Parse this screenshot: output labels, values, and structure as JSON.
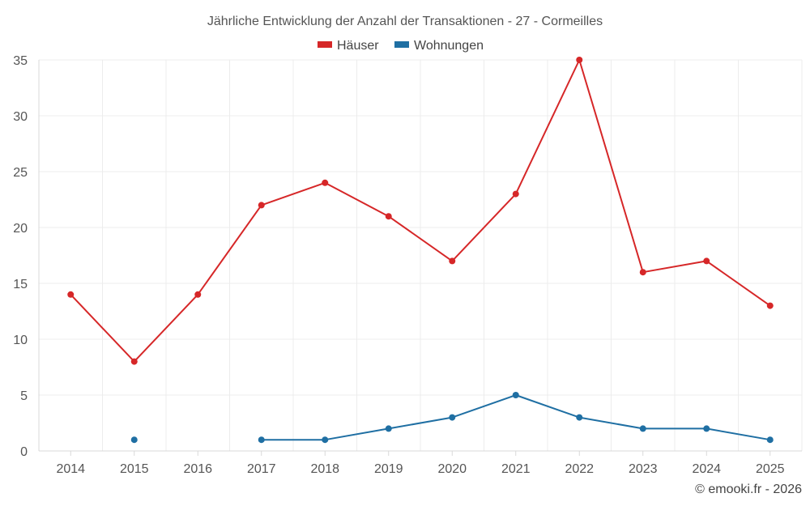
{
  "chart_data": {
    "type": "line",
    "title": "Jährliche Entwicklung der Anzahl der Transaktionen - 27 - Cormeilles",
    "categories": [
      "2014",
      "2015",
      "2016",
      "2017",
      "2018",
      "2019",
      "2020",
      "2021",
      "2022",
      "2023",
      "2024",
      "2025"
    ],
    "series": [
      {
        "name": "Häuser",
        "color": "#d62728",
        "values": [
          14,
          8,
          14,
          22,
          24,
          21,
          17,
          23,
          35,
          16,
          17,
          13
        ]
      },
      {
        "name": "Wohnungen",
        "color": "#1f6fa3",
        "values": [
          null,
          1,
          null,
          1,
          1,
          2,
          3,
          5,
          3,
          2,
          2,
          1
        ]
      }
    ],
    "ylim": [
      0,
      35
    ],
    "yticks": [
      0,
      5,
      10,
      15,
      20,
      25,
      30,
      35
    ],
    "xlabel": "",
    "ylabel": "",
    "grid": true,
    "legend_position": "top-center"
  },
  "credit": "© emooki.fr - 2026"
}
